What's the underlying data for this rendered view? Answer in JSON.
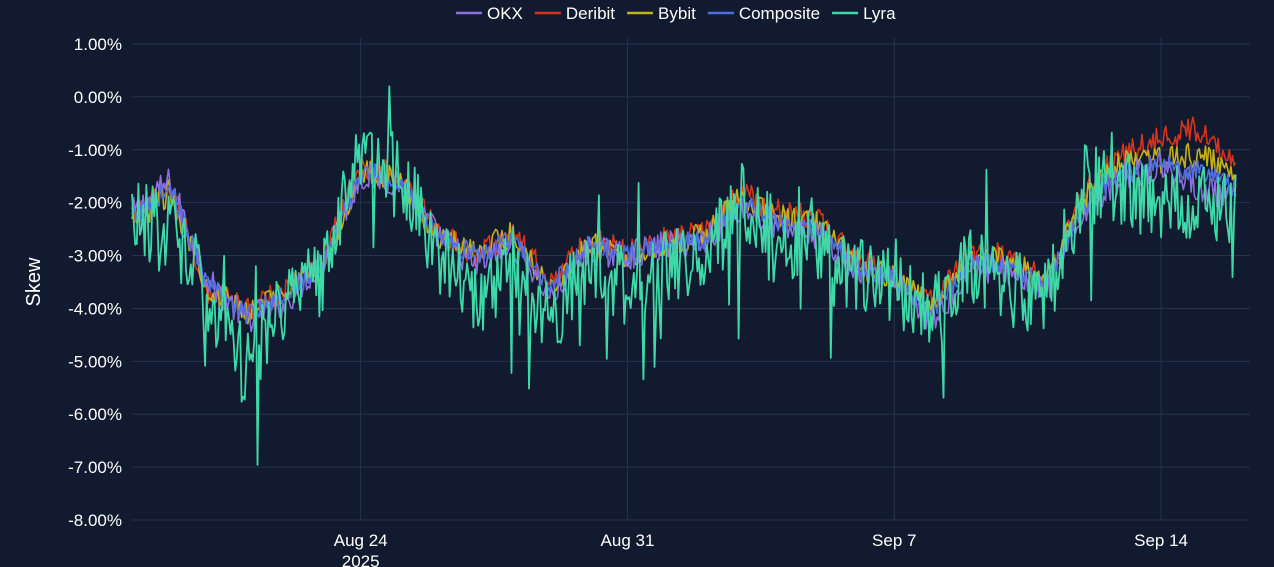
{
  "colors": {
    "background": "#111a2e",
    "grid": "#253252",
    "text": "#ffffff"
  },
  "chart_data": {
    "type": "line",
    "title": "",
    "xlabel": "",
    "ylabel": "Skew",
    "ylim": [
      -8.0,
      1.0
    ],
    "xlim": [
      "2025-08-18",
      "2025-09-16 08:00"
    ],
    "yticks": [
      1,
      0,
      -1,
      -2,
      -3,
      -4,
      -5,
      -6,
      -7,
      -8
    ],
    "ytick_labels": [
      "1.00%",
      "0.00%",
      "-1.00%",
      "-2.00%",
      "-3.00%",
      "-4.00%",
      "-5.00%",
      "-6.00%",
      "-7.00%",
      "-8.00%"
    ],
    "xticks": [
      "2025-08-24",
      "2025-08-31",
      "2025-09-07",
      "2025-09-14"
    ],
    "xtick_labels": [
      "Aug 24\n2025",
      "Aug 31",
      "Sep 7",
      "Sep 14"
    ],
    "grid": true,
    "legend_position": "top-center",
    "x_dates": [
      "2025-08-18",
      "2025-08-19",
      "2025-08-20",
      "2025-08-21",
      "2025-08-22",
      "2025-08-23",
      "2025-08-24",
      "2025-08-25",
      "2025-08-26",
      "2025-08-27",
      "2025-08-28",
      "2025-08-29",
      "2025-08-30",
      "2025-08-31",
      "2025-09-01",
      "2025-09-02",
      "2025-09-03",
      "2025-09-04",
      "2025-09-05",
      "2025-09-06",
      "2025-09-07",
      "2025-09-08",
      "2025-09-09",
      "2025-09-10",
      "2025-09-11",
      "2025-09-12",
      "2025-09-13",
      "2025-09-14",
      "2025-09-15",
      "2025-09-16"
    ],
    "series": [
      {
        "name": "OKX",
        "color": "#8a6fe0",
        "values": [
          -2.2,
          -1.6,
          -3.5,
          -4.2,
          -3.9,
          -3.1,
          -1.5,
          -1.6,
          -2.6,
          -3.2,
          -2.8,
          -3.8,
          -2.9,
          -3.0,
          -2.8,
          -2.7,
          -2.1,
          -2.5,
          -2.6,
          -3.3,
          -3.5,
          -4.3,
          -3.2,
          -3.3,
          -3.7,
          -2.1,
          -1.5,
          -1.3,
          -1.7,
          -2.0
        ]
      },
      {
        "name": "Deribit",
        "color": "#d4341c",
        "values": [
          -2.3,
          -1.7,
          -3.7,
          -4.0,
          -3.7,
          -3.1,
          -1.3,
          -1.5,
          -2.5,
          -3.0,
          -2.6,
          -3.5,
          -2.7,
          -2.9,
          -2.7,
          -2.6,
          -1.8,
          -2.2,
          -2.3,
          -3.1,
          -3.4,
          -3.9,
          -3.0,
          -3.0,
          -3.5,
          -1.8,
          -1.0,
          -0.8,
          -0.6,
          -1.2
        ]
      },
      {
        "name": "Bybit",
        "color": "#c4b11a",
        "values": [
          -2.4,
          -1.8,
          -3.6,
          -4.1,
          -3.6,
          -3.2,
          -1.4,
          -1.6,
          -2.6,
          -2.9,
          -2.6,
          -3.6,
          -2.8,
          -3.0,
          -2.8,
          -2.6,
          -1.9,
          -2.3,
          -2.4,
          -3.2,
          -3.4,
          -4.0,
          -3.0,
          -3.1,
          -3.5,
          -1.9,
          -1.2,
          -1.2,
          -1.1,
          -1.5
        ]
      },
      {
        "name": "Composite",
        "color": "#4f6ee0",
        "values": [
          -2.3,
          -1.7,
          -3.6,
          -4.1,
          -3.7,
          -3.2,
          -1.4,
          -1.6,
          -2.6,
          -3.0,
          -2.7,
          -3.6,
          -2.8,
          -3.0,
          -2.8,
          -2.7,
          -2.0,
          -2.4,
          -2.5,
          -3.2,
          -3.5,
          -4.1,
          -3.1,
          -3.2,
          -3.6,
          -2.0,
          -1.4,
          -1.3,
          -1.4,
          -1.7
        ]
      },
      {
        "name": "Lyra",
        "color": "#3fd9a8",
        "values": [
          -2.2,
          -2.5,
          -3.7,
          -5.2,
          -3.8,
          -3.4,
          -1.1,
          -1.3,
          -3.0,
          -3.8,
          -3.2,
          -4.2,
          -3.2,
          -3.6,
          -3.3,
          -3.1,
          -2.0,
          -2.7,
          -2.8,
          -3.4,
          -3.6,
          -4.2,
          -3.2,
          -3.6,
          -3.8,
          -1.6,
          -1.8,
          -2.0,
          -2.0,
          -2.1
        ]
      }
    ]
  }
}
